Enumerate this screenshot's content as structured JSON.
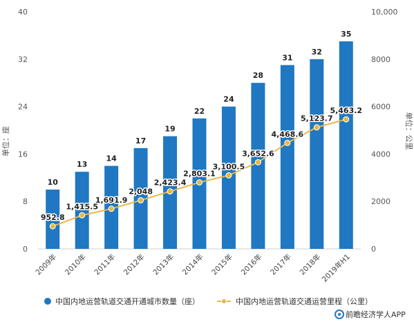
{
  "chart_data": {
    "type": "bar",
    "categories": [
      "2009年",
      "2010年",
      "2011年",
      "2012年",
      "2013年",
      "2014年",
      "2015年",
      "2016年",
      "2017年",
      "2018年",
      "2019年H1"
    ],
    "series": [
      {
        "name": "中国内地运营轨道交通开通城市数量（座）",
        "type": "bar",
        "axis": "left",
        "color": "#1f78c1",
        "values": [
          10,
          13,
          14,
          17,
          19,
          22,
          24,
          28,
          31,
          32,
          35
        ],
        "labels": [
          "10",
          "13",
          "14",
          "17",
          "19",
          "22",
          "24",
          "28",
          "31",
          "32",
          "35"
        ]
      },
      {
        "name": "中国内地运营轨道交通运营里程（公里）",
        "type": "line",
        "axis": "right",
        "color": "#e6b84a",
        "values": [
          952.8,
          1415.5,
          1691.9,
          2048,
          2423.4,
          2803.1,
          3100.5,
          3652.6,
          4468.6,
          5123.7,
          5463.2
        ],
        "labels": [
          "952.8",
          "1,415.5",
          "1,691.9",
          "2,048",
          "2,423.4",
          "2,803.1",
          "3,100.5",
          "3,652.6",
          "4,468.6",
          "5,123.7",
          "5,463.2"
        ]
      }
    ],
    "ylabel_left": "单位：座",
    "ylabel_right": "单位：公里",
    "ylim_left": [
      0,
      40
    ],
    "ylim_right": [
      0,
      10000
    ],
    "yticks_left": [
      "0",
      "8",
      "16",
      "24",
      "32",
      "40"
    ],
    "yticks_right": [
      "0",
      "2000",
      "4000",
      "6000",
      "8000",
      "10,000"
    ],
    "grid": false,
    "legend_position": "bottom"
  },
  "footer": {
    "source": "前瞻经济学人APP"
  }
}
